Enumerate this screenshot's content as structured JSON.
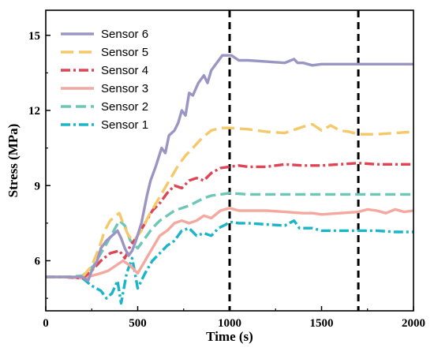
{
  "chart_data": {
    "type": "line",
    "title": "",
    "xlabel": "Time (s)",
    "ylabel": "Stress (MPa)",
    "xlim": [
      0,
      2000
    ],
    "ylim": [
      4,
      16
    ],
    "xticks": [
      0,
      500,
      1000,
      1500,
      2000
    ],
    "yticks": [
      6,
      9,
      12,
      15
    ],
    "xtick_labels": [
      "0",
      "500",
      "1000",
      "1500",
      "2000"
    ],
    "ytick_labels": [
      "6",
      "9",
      "12",
      "15"
    ],
    "grid": false,
    "legend_position": "top-left",
    "vertical_markers": [
      1000,
      1700
    ],
    "series": [
      {
        "name": "Sensor 6",
        "color": "#9b95c4",
        "dash": "solid",
        "x": [
          0,
          100,
          200,
          230,
          250,
          280,
          300,
          330,
          360,
          390,
          410,
          430,
          450,
          470,
          490,
          520,
          550,
          570,
          600,
          630,
          650,
          670,
          700,
          720,
          740,
          760,
          780,
          800,
          830,
          860,
          880,
          900,
          930,
          960,
          990,
          1010,
          1050,
          1100,
          1200,
          1300,
          1350,
          1370,
          1400,
          1450,
          1500,
          1600,
          1700,
          1800,
          1900,
          2000
        ],
        "y": [
          5.35,
          5.35,
          5.35,
          5.2,
          5.6,
          6.0,
          6.5,
          6.8,
          7.0,
          7.2,
          6.9,
          6.5,
          6.2,
          6.4,
          6.8,
          7.5,
          8.6,
          9.2,
          9.8,
          10.5,
          10.3,
          11.0,
          11.2,
          11.5,
          12.0,
          11.8,
          12.7,
          12.6,
          13.1,
          13.4,
          13.1,
          13.6,
          13.9,
          14.2,
          14.2,
          14.2,
          14.0,
          14.0,
          13.95,
          13.9,
          14.05,
          13.9,
          13.9,
          13.8,
          13.85,
          13.85,
          13.85,
          13.85,
          13.85,
          13.85
        ]
      },
      {
        "name": "Sensor 5",
        "color": "#f5c86a",
        "dash": "16 7",
        "x": [
          0,
          100,
          200,
          250,
          290,
          320,
          350,
          380,
          400,
          420,
          450,
          480,
          520,
          560,
          600,
          640,
          680,
          720,
          760,
          800,
          850,
          900,
          950,
          1000,
          1100,
          1200,
          1300,
          1400,
          1450,
          1500,
          1550,
          1600,
          1650,
          1700,
          1800,
          1900,
          2000
        ],
        "y": [
          5.35,
          5.35,
          5.35,
          5.8,
          6.5,
          7.2,
          7.6,
          7.8,
          7.9,
          7.5,
          7.0,
          6.8,
          7.2,
          7.8,
          8.3,
          8.8,
          9.3,
          9.8,
          10.2,
          10.5,
          10.9,
          11.2,
          11.3,
          11.3,
          11.25,
          11.15,
          11.1,
          11.35,
          11.45,
          11.2,
          11.4,
          11.2,
          11.15,
          11.05,
          11.05,
          11.1,
          11.15
        ]
      },
      {
        "name": "Sensor 4",
        "color": "#e04454",
        "dash": "12 4 3 4",
        "x": [
          0,
          100,
          200,
          250,
          300,
          350,
          400,
          430,
          460,
          500,
          540,
          580,
          620,
          660,
          700,
          740,
          780,
          820,
          860,
          900,
          950,
          1000,
          1050,
          1100,
          1200,
          1300,
          1400,
          1500,
          1600,
          1700,
          1800,
          1900,
          2000
        ],
        "y": [
          5.35,
          5.35,
          5.3,
          5.6,
          6.0,
          6.3,
          6.4,
          6.1,
          6.6,
          7.0,
          7.5,
          8.0,
          8.3,
          8.7,
          9.0,
          8.9,
          9.2,
          9.3,
          9.2,
          9.5,
          9.7,
          9.75,
          9.8,
          9.75,
          9.75,
          9.85,
          9.8,
          9.8,
          9.85,
          9.9,
          9.85,
          9.85,
          9.85
        ]
      },
      {
        "name": "Sensor 3",
        "color": "#f4a9a0",
        "dash": "solid",
        "x": [
          0,
          100,
          200,
          250,
          300,
          340,
          380,
          420,
          460,
          500,
          540,
          580,
          620,
          660,
          700,
          740,
          780,
          820,
          860,
          900,
          950,
          1000,
          1050,
          1100,
          1200,
          1300,
          1400,
          1450,
          1500,
          1600,
          1700,
          1750,
          1800,
          1850,
          1900,
          1950,
          2000
        ],
        "y": [
          5.35,
          5.35,
          5.3,
          5.4,
          5.5,
          5.6,
          5.8,
          6.0,
          5.8,
          5.5,
          6.0,
          6.5,
          7.0,
          7.2,
          7.5,
          7.6,
          7.5,
          7.6,
          7.8,
          7.7,
          8.0,
          8.1,
          8.0,
          8.0,
          8.0,
          7.95,
          7.9,
          7.9,
          7.85,
          7.9,
          7.95,
          8.05,
          8.0,
          7.9,
          8.05,
          7.95,
          8.0
        ]
      },
      {
        "name": "Sensor 2",
        "color": "#6cc7b6",
        "dash": "13 6",
        "x": [
          0,
          100,
          200,
          260,
          300,
          340,
          370,
          400,
          430,
          460,
          500,
          540,
          580,
          620,
          660,
          700,
          740,
          780,
          820,
          860,
          900,
          950,
          1000,
          1100,
          1200,
          1300,
          1400,
          1500,
          1600,
          1700,
          1800,
          1900,
          2000
        ],
        "y": [
          5.35,
          5.35,
          5.4,
          5.8,
          6.3,
          6.8,
          7.2,
          7.6,
          7.4,
          6.8,
          6.5,
          6.9,
          7.3,
          7.6,
          7.8,
          8.0,
          8.1,
          8.2,
          8.35,
          8.5,
          8.6,
          8.65,
          8.7,
          8.65,
          8.65,
          8.65,
          8.65,
          8.65,
          8.65,
          8.65,
          8.65,
          8.65,
          8.65
        ]
      },
      {
        "name": "Sensor 1",
        "color": "#1ab5c8",
        "dash": "12 4 3 4",
        "x": [
          0,
          100,
          200,
          250,
          300,
          330,
          360,
          390,
          410,
          440,
          470,
          500,
          540,
          580,
          620,
          660,
          700,
          740,
          780,
          820,
          860,
          900,
          940,
          980,
          1000,
          1050,
          1100,
          1200,
          1300,
          1350,
          1380,
          1400,
          1450,
          1500,
          1600,
          1700,
          1800,
          1900,
          2000
        ],
        "y": [
          5.35,
          5.35,
          5.3,
          5.0,
          4.8,
          4.5,
          4.7,
          5.2,
          4.3,
          5.5,
          6.1,
          4.9,
          5.5,
          6.0,
          6.3,
          6.6,
          6.8,
          7.2,
          7.3,
          7.0,
          7.1,
          7.0,
          7.3,
          7.45,
          7.55,
          7.5,
          7.5,
          7.45,
          7.4,
          7.6,
          7.3,
          7.3,
          7.3,
          7.2,
          7.2,
          7.2,
          7.2,
          7.15,
          7.15
        ]
      }
    ]
  }
}
